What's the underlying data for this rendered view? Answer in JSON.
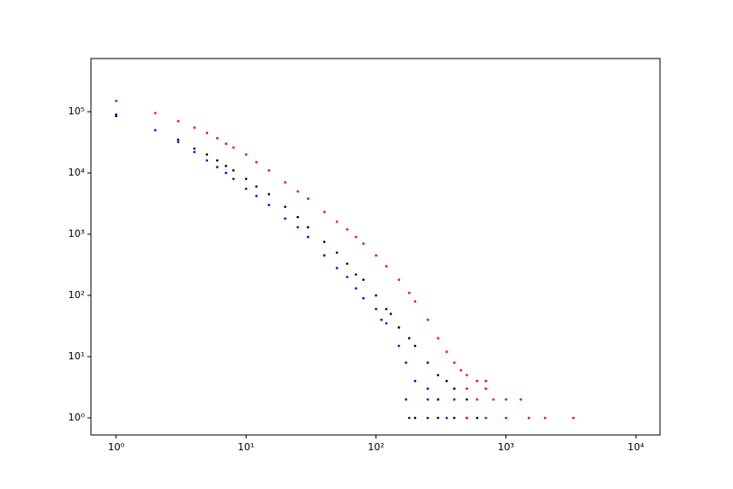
{
  "chart_data": {
    "type": "scatter",
    "log_x": true,
    "log_y": true,
    "xlim": [
      0.64,
      15350
    ],
    "ylim": [
      0.526,
      738000
    ],
    "xticks": [
      {
        "value": 1,
        "label": "10⁰"
      },
      {
        "value": 10,
        "label": "10¹"
      },
      {
        "value": 100,
        "label": "10²"
      },
      {
        "value": 1000,
        "label": "10³"
      },
      {
        "value": 10000,
        "label": "10⁴"
      }
    ],
    "yticks": [
      {
        "value": 1,
        "label": "10⁰"
      },
      {
        "value": 10,
        "label": "10¹"
      },
      {
        "value": 100,
        "label": "10²"
      },
      {
        "value": 1000,
        "label": "10³"
      },
      {
        "value": 10000,
        "label": "10⁴"
      },
      {
        "value": 100000,
        "label": "10⁵"
      }
    ],
    "series": [
      {
        "color": "#000000",
        "x": [
          1,
          3,
          4,
          5,
          6,
          7,
          8,
          10,
          12,
          15,
          20,
          25,
          30,
          40,
          50,
          60,
          70,
          80,
          100,
          120,
          130,
          150,
          180,
          200,
          250,
          300,
          350,
          400,
          500,
          300,
          400,
          200,
          300,
          400,
          600
        ],
        "values": [
          85000,
          35000,
          25000,
          20000,
          16000,
          13000,
          11000,
          8000,
          6000,
          4500,
          2800,
          1900,
          1300,
          750,
          500,
          330,
          220,
          180,
          100,
          60,
          50,
          30,
          20,
          15,
          8,
          5,
          4,
          3,
          2,
          2,
          2,
          1,
          1,
          1,
          1
        ]
      },
      {
        "color": "#0000ff",
        "x": [
          1,
          2,
          3,
          4,
          5,
          6,
          7,
          8,
          10,
          12,
          15,
          20,
          25,
          30,
          40,
          50,
          60,
          70,
          80,
          100,
          110,
          120,
          150,
          170,
          200,
          250,
          170,
          250,
          300,
          180,
          250,
          350,
          500
        ],
        "values": [
          90000,
          50000,
          32000,
          22000,
          16000,
          12500,
          10000,
          8000,
          5500,
          4200,
          3000,
          1800,
          1300,
          900,
          450,
          280,
          200,
          130,
          90,
          60,
          40,
          35,
          15,
          8,
          4,
          3,
          2,
          2,
          2,
          1,
          1,
          1,
          1
        ]
      },
      {
        "color": "#ff0000",
        "x": [
          1,
          2,
          3,
          4,
          5,
          6,
          7,
          8,
          10,
          12,
          15,
          20,
          25,
          30,
          40,
          50,
          60,
          70,
          80,
          100,
          120,
          150,
          180,
          200,
          250,
          300,
          350,
          400,
          450,
          500,
          600,
          700,
          500,
          700,
          400,
          600,
          800,
          1000,
          1300,
          500,
          700,
          1000,
          1500,
          2000,
          3300
        ],
        "values": [
          150000,
          95000,
          70000,
          55000,
          45000,
          37000,
          30000,
          26000,
          20000,
          15000,
          11000,
          7000,
          5000,
          3800,
          2300,
          1600,
          1200,
          900,
          700,
          450,
          300,
          180,
          110,
          80,
          40,
          20,
          12,
          8,
          6,
          5,
          4,
          4,
          3,
          3,
          2,
          2,
          2,
          2,
          2,
          1,
          1,
          1,
          1,
          1,
          1
        ]
      }
    ]
  }
}
